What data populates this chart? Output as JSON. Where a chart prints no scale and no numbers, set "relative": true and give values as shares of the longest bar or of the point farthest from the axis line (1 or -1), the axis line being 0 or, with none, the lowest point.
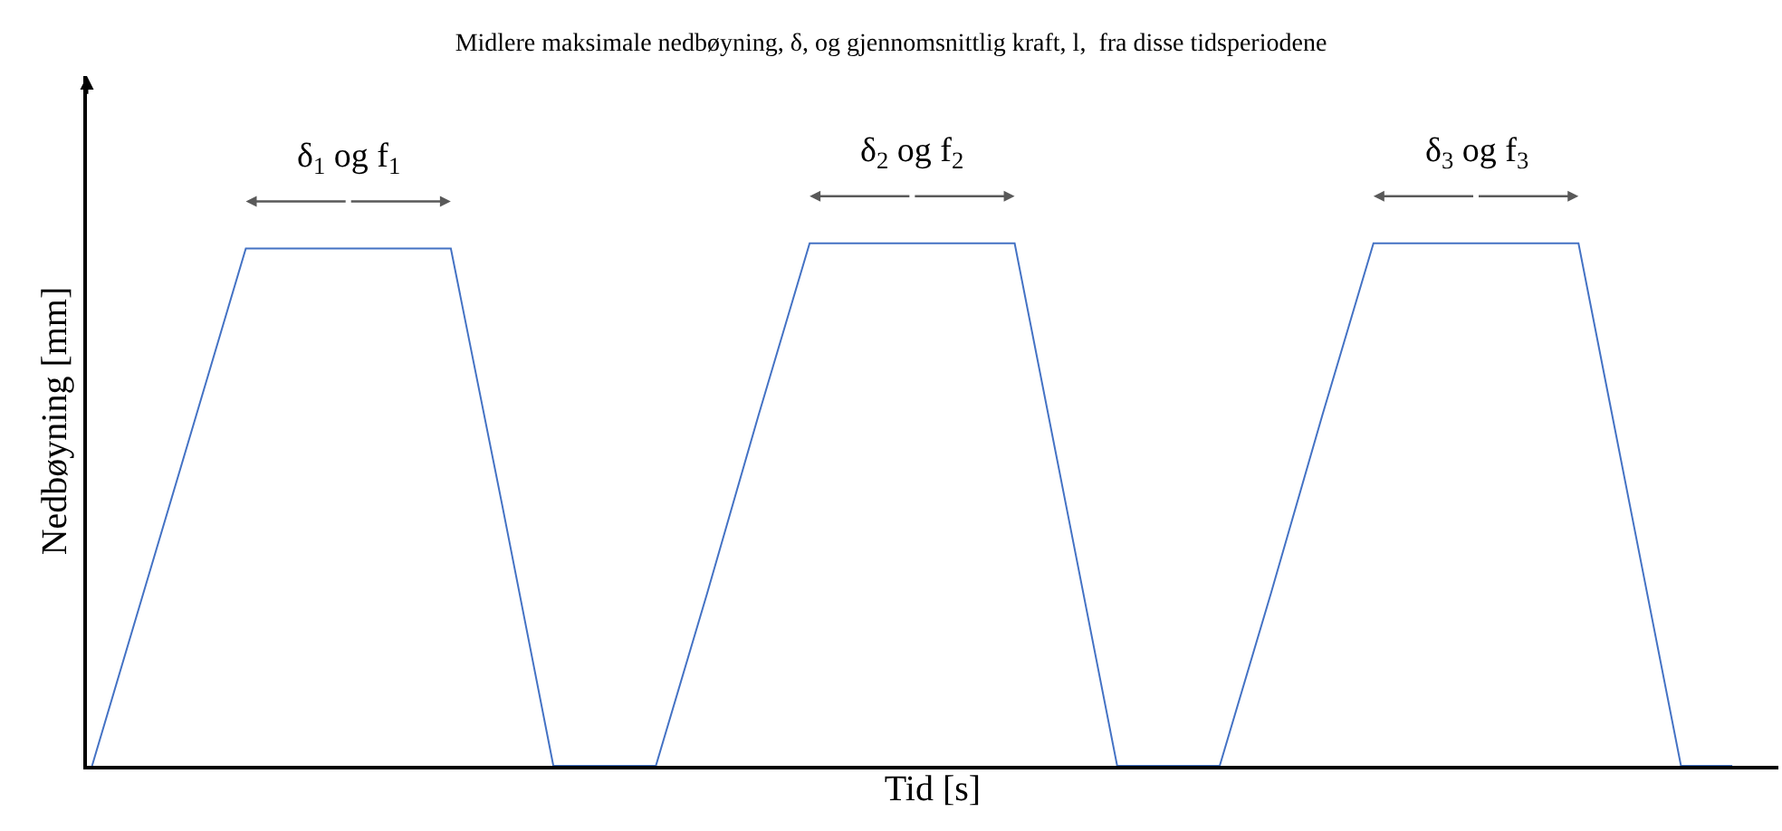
{
  "chart_data": {
    "type": "line",
    "relative": true,
    "title": "Midlere maksimale nedbøyning, δ, og gjennomsnittlig kraft, l,  fra disse tidsperiodene",
    "xlabel": "Tid [s]",
    "ylabel": "Nedbøyning [mm]",
    "tick_labels": false,
    "marker": "none",
    "line_style": "solid",
    "categories": [
      null,
      null,
      null,
      null,
      null,
      null,
      null,
      null,
      null,
      null,
      null,
      null,
      null,
      null,
      null,
      null,
      null,
      null,
      null,
      null,
      null,
      null,
      null,
      null,
      null,
      null,
      null,
      null,
      null,
      null,
      null,
      null,
      null
    ],
    "series": [
      {
        "color": "#4472c4",
        "values": [
          0,
          0.33,
          0.66,
          0.99,
          0.99,
          0.99,
          0.99,
          0.99,
          0.5,
          0,
          0,
          0,
          0.33,
          0.67,
          1,
          1,
          1,
          1,
          1,
          0.5,
          0,
          0,
          0,
          0.33,
          0.67,
          1,
          1,
          1,
          1,
          1,
          0.5,
          0,
          0
        ]
      }
    ],
    "annotations": [
      "δ$_{1}$ og f$_{1}$",
      "δ$_{2}$ og f$_{2}$",
      "δ$_{3}$ og f$_{3}$"
    ]
  }
}
